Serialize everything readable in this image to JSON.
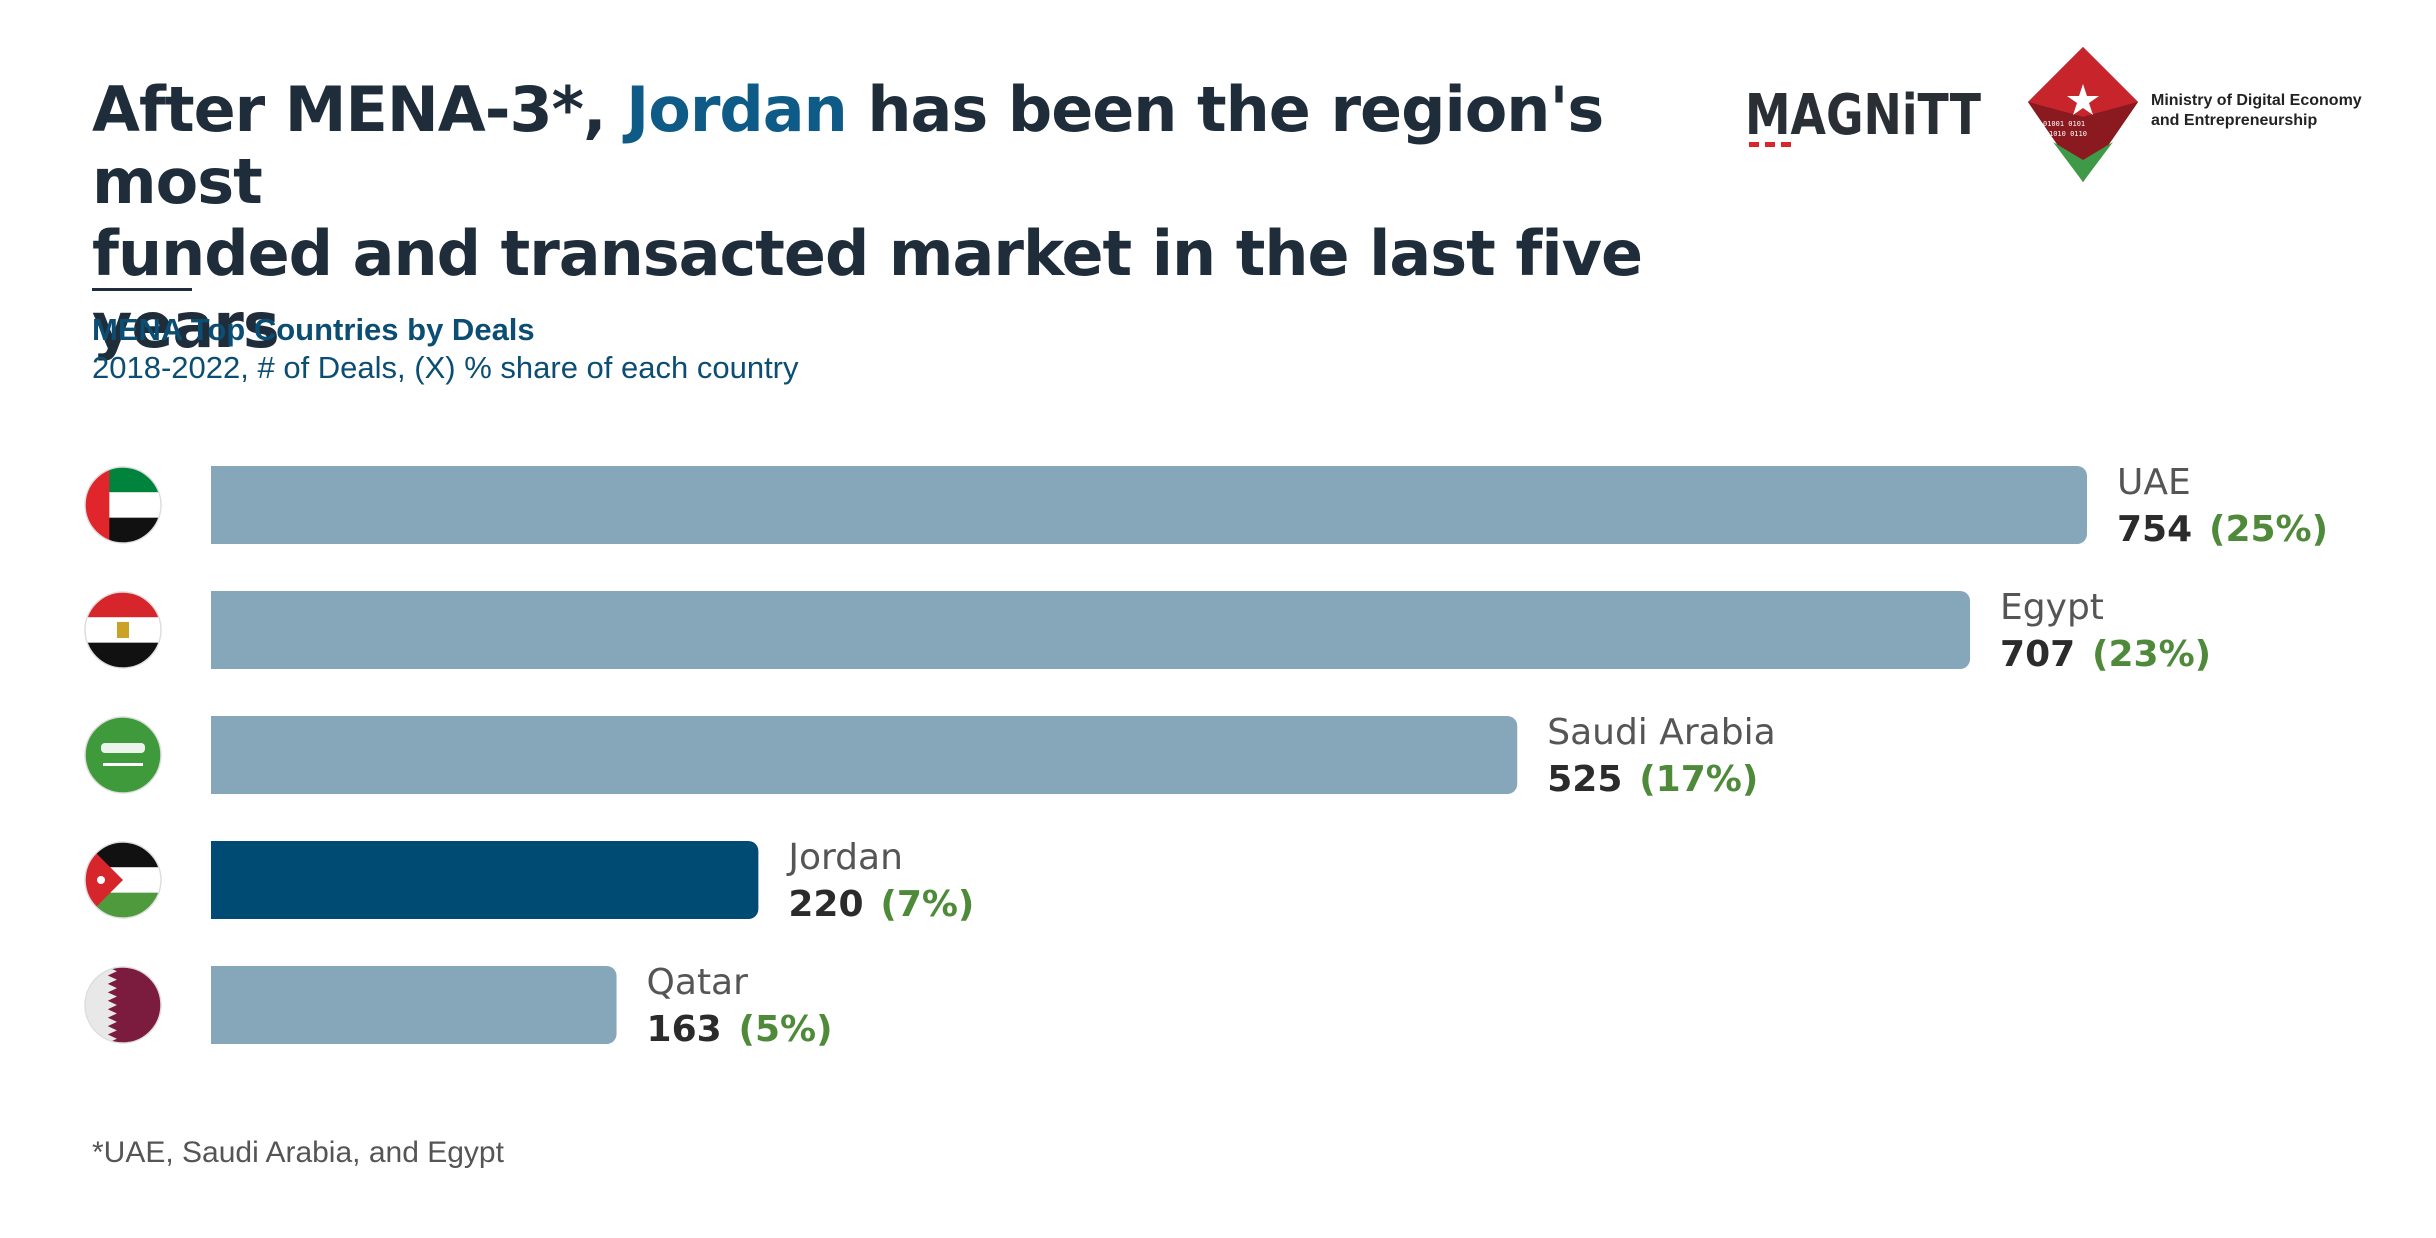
{
  "header": {
    "title_part1": "After MENA-3*, ",
    "title_highlight": "Jordan",
    "title_part2": " has been the region's most",
    "title_line2": "funded and transacted market in the last five years",
    "brand_logo": "MAGNiTT",
    "ministry_line1": "Ministry of Digital Economy",
    "ministry_line2": "and Entrepreneurship"
  },
  "chart_data": {
    "type": "bar",
    "orientation": "horizontal",
    "title": "MENA Top Countries by Deals",
    "subtitle": "2018-2022, # of Deals, (X) % share of each country",
    "categories": [
      "UAE",
      "Egypt",
      "Saudi Arabia",
      "Jordan",
      "Qatar"
    ],
    "values": [
      754,
      707,
      525,
      220,
      163
    ],
    "value_labels": [
      "754",
      "707",
      "525",
      "220",
      "163"
    ],
    "share_labels": [
      "(25%)",
      "(23%)",
      "(17%)",
      "(7%)",
      "(5%)"
    ],
    "flags": [
      "uae-flag-icon",
      "egypt-flag-icon",
      "saudi-arabia-flag-icon",
      "jordan-flag-icon",
      "qatar-flag-icon"
    ],
    "highlight": "Jordan",
    "xlim": [
      0,
      754
    ],
    "grid": false,
    "legend": "none"
  },
  "colors": {
    "bar_default": "#86a7ba",
    "bar_highlight": "#004b74",
    "share_text": "#4f8a3a",
    "title_highlight": "#0d5b86"
  },
  "footnote": "*UAE, Saudi Arabia, and Egypt"
}
